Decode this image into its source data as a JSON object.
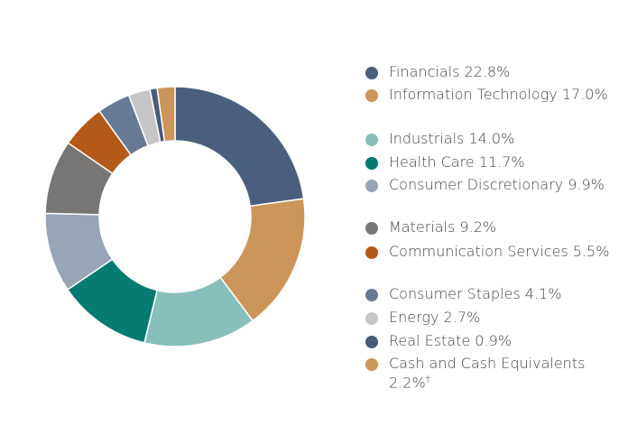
{
  "chart_data": {
    "type": "pie",
    "donut": true,
    "legend_position": "right",
    "slices": [
      {
        "label": "Financials",
        "value": 22.8,
        "display": "22.8%",
        "color": "#4a5f7e"
      },
      {
        "label": "Information Technology",
        "value": 17.0,
        "display": "17.0%",
        "color": "#cc9559"
      },
      {
        "label": "Industrials",
        "value": 14.0,
        "display": "14.0%",
        "color": "#88bfbb"
      },
      {
        "label": "Health Care",
        "value": 11.7,
        "display": "11.7%",
        "color": "#067b72"
      },
      {
        "label": "Consumer Discretionary",
        "value": 9.9,
        "display": "9.9%",
        "color": "#98a5b6"
      },
      {
        "label": "Materials",
        "value": 9.2,
        "display": "9.2%",
        "color": "#777674"
      },
      {
        "label": "Communication Services",
        "value": 5.5,
        "display": "5.5%",
        "color": "#b35a1b"
      },
      {
        "label": "Consumer Staples",
        "value": 4.1,
        "display": "4.1%",
        "color": "#687a93"
      },
      {
        "label": "Energy",
        "value": 2.7,
        "display": "2.7%",
        "color": "#c6c6c6"
      },
      {
        "label": "Real Estate",
        "value": 0.9,
        "display": "0.9%",
        "color": "#485c7c"
      },
      {
        "label": "Cash and Cash Equivalents",
        "value": 2.2,
        "display": "2.2%",
        "color": "#cc9559",
        "footnote": "†"
      }
    ]
  }
}
